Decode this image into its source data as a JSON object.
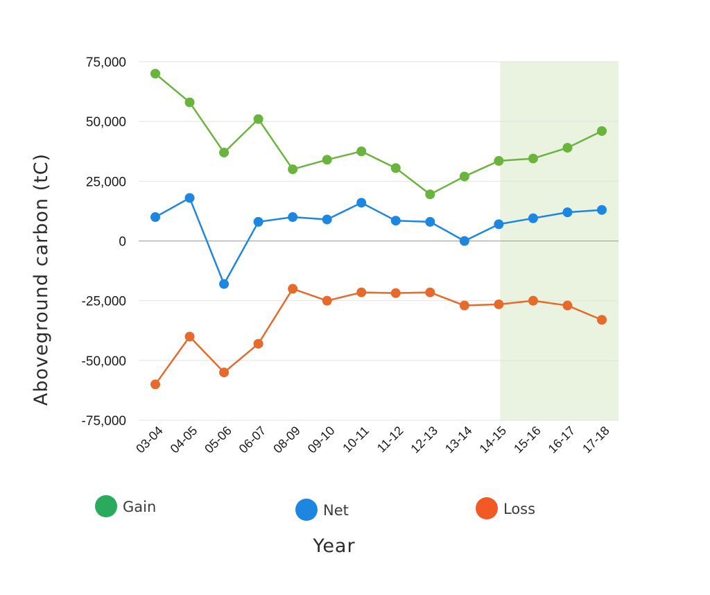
{
  "chart_data": {
    "type": "line",
    "xlabel": "Year",
    "ylabel": "Aboveground carbon (tC)",
    "categories": [
      "03-04",
      "04-05",
      "05-06",
      "06-07",
      "08-09",
      "09-10",
      "10-11",
      "11-12",
      "12-13",
      "13-14",
      "14-15",
      "15-16",
      "16-17",
      "17-18"
    ],
    "ylim": [
      -75000,
      75000
    ],
    "yticks": [
      75000,
      50000,
      25000,
      0,
      -25000,
      -50000,
      -75000
    ],
    "ytick_labels": [
      "75,000",
      "50,000",
      "25,000",
      "0",
      "-25,000",
      "-50,000",
      "-75,000"
    ],
    "grid": true,
    "highlight_range": {
      "from": "14-15",
      "to": "17-18",
      "color": "#e9f3df"
    },
    "legend_position": "bottom",
    "series": [
      {
        "name": "Gain",
        "line_color": "#6ab43e",
        "legend_color": "#2aaa5c",
        "values": [
          70000,
          58000,
          37000,
          51000,
          30000,
          34000,
          37500,
          30500,
          19500,
          27000,
          33500,
          34500,
          39000,
          46000
        ]
      },
      {
        "name": "Net",
        "line_color": "#1d86e0",
        "legend_color": "#1d86e0",
        "values": [
          10000,
          18000,
          -18000,
          8000,
          10000,
          9000,
          16000,
          8500,
          8000,
          0,
          7000,
          9500,
          12000,
          13000
        ]
      },
      {
        "name": "Loss",
        "line_color": "#e56a2c",
        "legend_color": "#f15a24",
        "values": [
          -60000,
          -40000,
          -55000,
          -43000,
          -20000,
          -25000,
          -21500,
          -21800,
          -21500,
          -27000,
          -26500,
          -25000,
          -27000,
          -33000
        ]
      }
    ]
  }
}
